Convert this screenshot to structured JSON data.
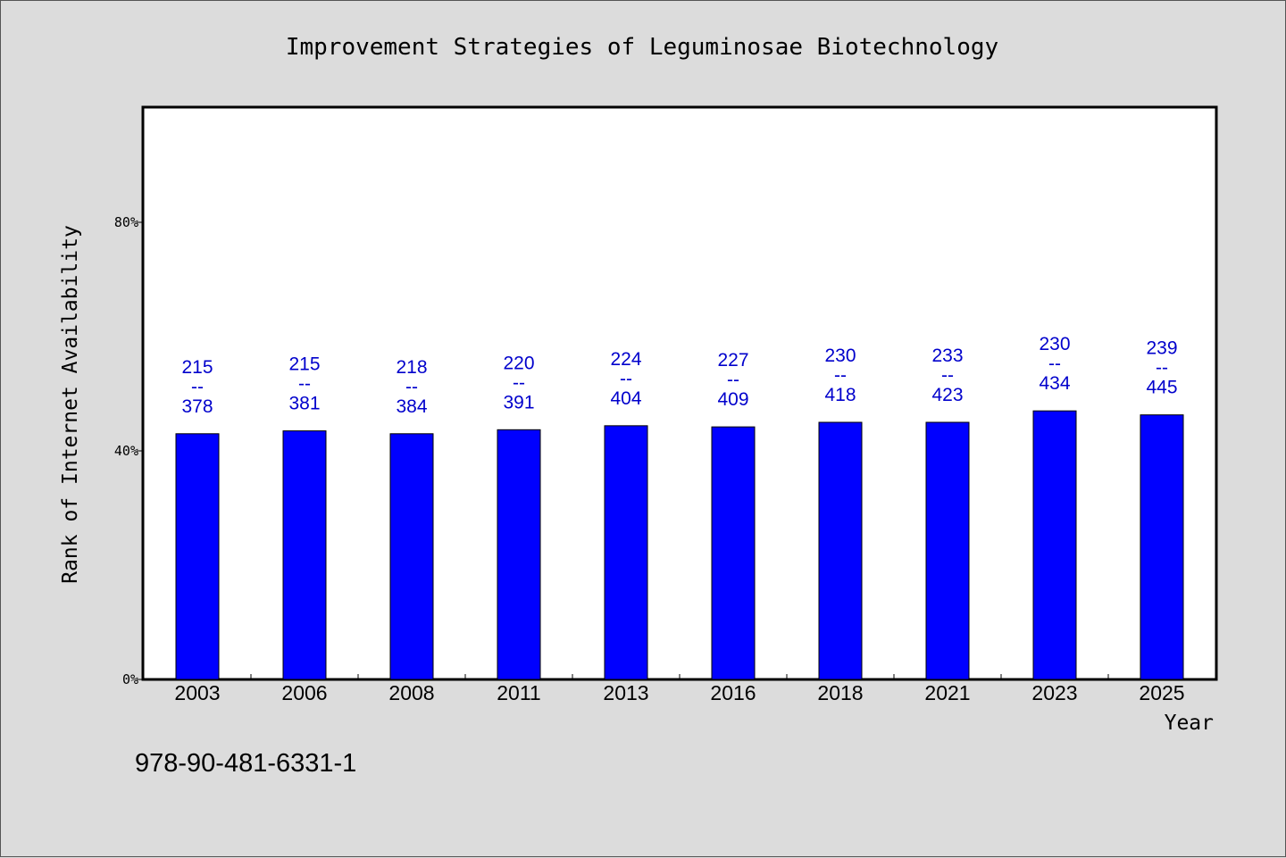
{
  "chart_data": {
    "type": "bar",
    "title": "Improvement Strategies of Leguminosae Biotechnology",
    "xlabel": "Year",
    "ylabel": "Rank of Internet Availability",
    "ylim": [
      0,
      100
    ],
    "yticks": [
      {
        "value": 0,
        "label": "0%"
      },
      {
        "value": 40,
        "label": "40%"
      },
      {
        "value": 80,
        "label": "80%"
      }
    ],
    "categories": [
      "2003",
      "2006",
      "2008",
      "2011",
      "2013",
      "2016",
      "2018",
      "2021",
      "2023",
      "2025"
    ],
    "values": [
      43.0,
      43.5,
      43.0,
      43.7,
      44.4,
      44.2,
      45.0,
      45.0,
      47.0,
      46.3
    ],
    "labels_top": [
      "215",
      "215",
      "218",
      "220",
      "224",
      "227",
      "230",
      "233",
      "230",
      "239"
    ],
    "labels_bottom": [
      "378",
      "381",
      "384",
      "391",
      "404",
      "409",
      "418",
      "423",
      "434",
      "445"
    ],
    "label_separator": "--",
    "bar_color": "#0000ff",
    "label_color": "#0000cc",
    "grid": false,
    "legend": "none"
  },
  "footer": {
    "isbn": "978-90-481-6331-1"
  }
}
